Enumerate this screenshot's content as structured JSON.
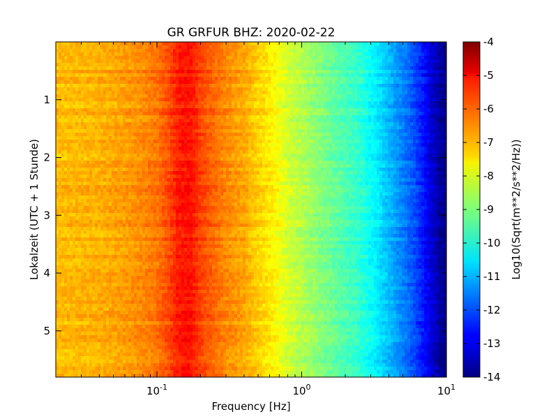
{
  "chart_data": {
    "type": "heatmap",
    "title": "GR GRFUR BHZ: 2020-02-22",
    "xlabel": "Frequency [Hz]",
    "ylabel": "Lokalzeit (UTC + 1 Stunde)",
    "xscale": "log",
    "xlim": [
      0.02,
      10
    ],
    "ylim": [
      0,
      5.8
    ],
    "y_inverted": true,
    "x_ticks": [
      {
        "value": 0.1,
        "base": "10",
        "exp": "-1"
      },
      {
        "value": 1,
        "base": "10",
        "exp": "0"
      },
      {
        "value": 10,
        "base": "10",
        "exp": "1"
      }
    ],
    "y_ticks": [
      "1",
      "2",
      "3",
      "4",
      "5"
    ],
    "colorbar": {
      "label": "Log10(Sqrt(m**2/s**2/Hz))",
      "range": [
        -14,
        -4
      ],
      "ticks": [
        "-4",
        "-5",
        "-6",
        "-7",
        "-8",
        "-9",
        "-10",
        "-11",
        "-12",
        "-13",
        "-14"
      ],
      "colormap": "jet"
    },
    "grid": false,
    "spectrum_profile": {
      "frequency_hz": [
        0.02,
        0.04,
        0.06,
        0.08,
        0.1,
        0.12,
        0.14,
        0.17,
        0.2,
        0.25,
        0.3,
        0.4,
        0.5,
        0.65,
        0.8,
        1.0,
        1.3,
        1.6,
        2.0,
        2.5,
        3.0,
        4.0,
        5.0,
        6.0,
        7.0,
        8.0,
        9.0,
        10.0
      ],
      "value": [
        -7.1,
        -7.0,
        -6.8,
        -6.6,
        -6.4,
        -6.0,
        -5.5,
        -5.4,
        -5.9,
        -6.3,
        -6.6,
        -6.9,
        -7.3,
        -7.7,
        -8.2,
        -8.5,
        -8.9,
        -9.2,
        -9.5,
        -9.8,
        -10.2,
        -10.9,
        -11.5,
        -12.0,
        -12.6,
        -13.2,
        -13.7,
        -14.0
      ]
    }
  }
}
